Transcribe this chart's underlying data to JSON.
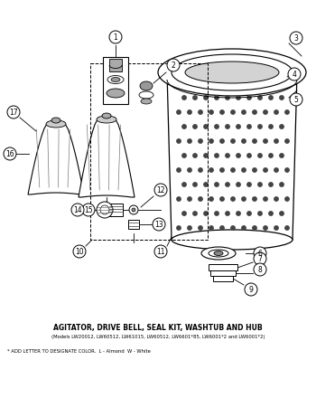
{
  "title": "AGITATOR, DRIVE BELL, SEAL KIT, WASHTUB AND HUB",
  "subtitle": "(Models LW20012, LW60512, LW61015, LW60512, LW6601*85, LW6001*2 and LW6001*2)",
  "footnote": "* ADD LETTER TO DESIGNATE COLOR.  L - Almond  W - White",
  "bg_color": "#ffffff",
  "text_color": "#000000"
}
